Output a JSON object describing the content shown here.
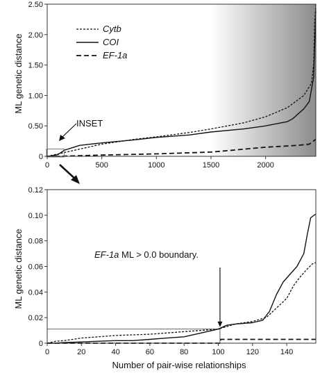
{
  "chart_data": [
    {
      "type": "line",
      "panel": "top",
      "ylabel": "ML genetic distance",
      "xlabel": "",
      "xlim": [
        0,
        2460
      ],
      "ylim": [
        0,
        2.5
      ],
      "x_ticks": [
        0,
        500,
        1000,
        1500,
        2000
      ],
      "y_ticks": [
        0,
        0.5,
        1.0,
        1.5,
        2.0,
        2.5
      ],
      "y_tick_labels": [
        "0",
        "0.50",
        "1.00",
        "1.50",
        "2.00",
        "2.50"
      ],
      "grid": false,
      "legend_position": "top-left",
      "background_gradient_x": [
        1500,
        2460
      ],
      "annotation": {
        "text": "INSET",
        "target": [
          75,
          0.1
        ]
      },
      "inset_box": {
        "x": [
          0,
          157
        ],
        "y": [
          0,
          0.12
        ]
      },
      "series": [
        {
          "name": "Cytb",
          "style": "dotted-dash",
          "x": [
            0,
            50,
            100,
            157,
            300,
            500,
            800,
            1000,
            1300,
            1500,
            1800,
            2000,
            2200,
            2350,
            2420,
            2440,
            2450,
            2460
          ],
          "y": [
            0,
            0.02,
            0.04,
            0.062,
            0.12,
            0.2,
            0.28,
            0.32,
            0.39,
            0.45,
            0.55,
            0.65,
            0.8,
            1.0,
            1.2,
            1.5,
            2.2,
            2.5
          ]
        },
        {
          "name": "COI",
          "style": "solid",
          "x": [
            0,
            50,
            100,
            157,
            300,
            500,
            800,
            1000,
            1300,
            1500,
            1800,
            2000,
            2200,
            2250,
            2300,
            2350,
            2400,
            2440,
            2460
          ],
          "y": [
            0,
            0.01,
            0.03,
            0.1,
            0.18,
            0.22,
            0.27,
            0.31,
            0.35,
            0.4,
            0.45,
            0.5,
            0.57,
            0.62,
            0.7,
            0.78,
            0.9,
            1.3,
            2.4
          ]
        },
        {
          "name": "EF-1a",
          "style": "dashed",
          "x": [
            0,
            100,
            157,
            500,
            1000,
            1500,
            1700,
            2000,
            2300,
            2400,
            2460
          ],
          "y": [
            0,
            0,
            0.003,
            0.02,
            0.04,
            0.07,
            0.1,
            0.15,
            0.18,
            0.2,
            0.28
          ]
        }
      ]
    },
    {
      "type": "line",
      "panel": "bottom",
      "ylabel": "ML genetic distance",
      "xlabel": "Number of pair-wise relationships",
      "xlim": [
        0,
        157
      ],
      "ylim": [
        0,
        0.12
      ],
      "x_ticks": [
        0,
        20,
        40,
        60,
        80,
        100,
        120,
        140
      ],
      "y_ticks": [
        0,
        0.02,
        0.04,
        0.06,
        0.08,
        0.1,
        0.12
      ],
      "y_tick_labels": [
        "0",
        "0.02",
        "0.04",
        "0.06",
        "0.08",
        "0.10",
        "0.12"
      ],
      "grid": false,
      "reference_hline": 0.011,
      "reference_vline": 101,
      "annotation": {
        "text_italic": "EF-1a",
        "text": " ML > 0.0 boundary.",
        "arrow_target": [
          101,
          0.012
        ]
      },
      "series": [
        {
          "name": "Cytb",
          "style": "dotted-dash",
          "x": [
            0,
            5,
            10,
            15,
            20,
            30,
            40,
            50,
            60,
            70,
            80,
            90,
            100,
            105,
            110,
            120,
            128,
            132,
            136,
            140,
            144,
            148,
            152,
            155,
            157
          ],
          "y": [
            0,
            0.0015,
            0.002,
            0.003,
            0.004,
            0.005,
            0.006,
            0.0065,
            0.007,
            0.008,
            0.009,
            0.01,
            0.011,
            0.013,
            0.015,
            0.017,
            0.02,
            0.025,
            0.03,
            0.035,
            0.045,
            0.052,
            0.058,
            0.062,
            0.063
          ]
        },
        {
          "name": "COI",
          "style": "solid",
          "x": [
            0,
            5,
            10,
            20,
            30,
            40,
            50,
            60,
            70,
            80,
            90,
            100,
            105,
            110,
            120,
            126,
            130,
            134,
            138,
            142,
            146,
            150,
            152,
            154,
            157
          ],
          "y": [
            0,
            0,
            0.0005,
            0.001,
            0.0015,
            0.002,
            0.002,
            0.003,
            0.004,
            0.005,
            0.008,
            0.011,
            0.014,
            0.015,
            0.016,
            0.018,
            0.025,
            0.038,
            0.048,
            0.054,
            0.06,
            0.07,
            0.085,
            0.098,
            0.101
          ]
        },
        {
          "name": "EF-1a",
          "style": "dashed",
          "x": [
            0,
            101,
            101.5,
            157
          ],
          "y": [
            0,
            0,
            0.003,
            0.003
          ]
        }
      ]
    }
  ]
}
